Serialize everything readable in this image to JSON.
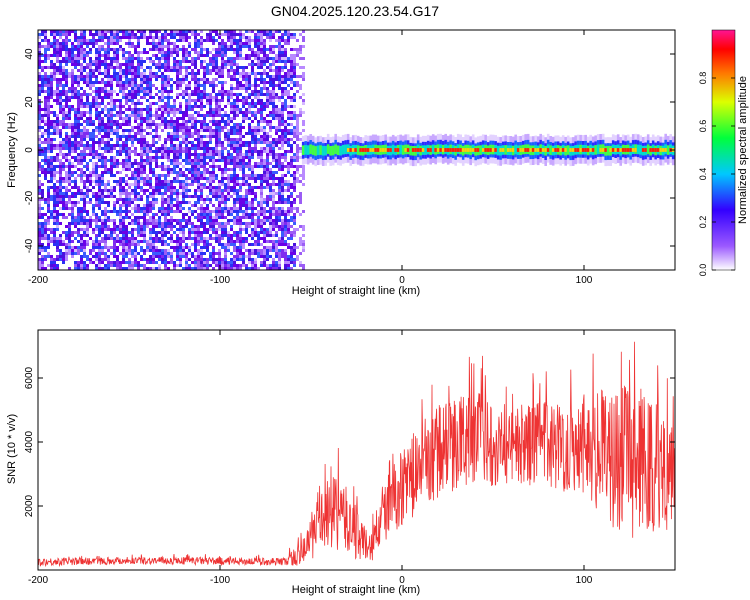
{
  "page_title": "GN04.2025.120.23.54.G17",
  "chart_data": [
    {
      "type": "heatmap",
      "title": "GN04.2025.120.23.54.G17",
      "xlabel": "Height of straight line (km)",
      "ylabel": "Frequency (Hz)",
      "xlim": [
        -200,
        150
      ],
      "ylim": [
        -50,
        50
      ],
      "x_ticks": [
        -200,
        -100,
        0,
        100
      ],
      "y_ticks": [
        -40,
        -20,
        0,
        20,
        40
      ],
      "colorbar": {
        "label": "Normalized spectral amplitude",
        "range": [
          0,
          1
        ],
        "ticks": [
          0.0,
          0.2,
          0.4,
          0.6,
          0.8
        ],
        "colors": [
          "#ffffff",
          "#7f00ff",
          "#0000ff",
          "#00ffff",
          "#00ff00",
          "#ffff00",
          "#ff0000",
          "#ff0080"
        ]
      },
      "regions": [
        {
          "x_range": [
            -200,
            -55
          ],
          "y_range": [
            -50,
            50
          ],
          "amplitude": 0.15,
          "description_color": "#8a2be2"
        },
        {
          "x_range": [
            -55,
            150
          ],
          "y_range": [
            -3,
            3
          ],
          "amplitude": 0.85,
          "description_color": "#ff0000"
        }
      ]
    },
    {
      "type": "line",
      "xlabel": "Height of straight line (km)",
      "ylabel": "SNR (10 * v/v)",
      "xlim": [
        -200,
        150
      ],
      "ylim": [
        0,
        7500
      ],
      "x_ticks": [
        -200,
        -100,
        0,
        100
      ],
      "y_ticks": [
        2000,
        4000,
        6000
      ],
      "color": "#ee3333",
      "envelope": {
        "x": [
          -200,
          -150,
          -100,
          -65,
          -55,
          -45,
          -35,
          -25,
          -18,
          -10,
          0,
          10,
          20,
          30,
          40,
          50,
          60,
          70,
          80,
          90,
          100,
          110,
          120,
          130,
          140,
          150
        ],
        "center": [
          250,
          300,
          280,
          260,
          500,
          1600,
          1800,
          1200,
          600,
          1800,
          2600,
          3200,
          3700,
          4000,
          4200,
          4000,
          3900,
          3900,
          4000,
          3800,
          4100,
          3600,
          3500,
          3300,
          3200,
          3500
        ],
        "spread": [
          120,
          120,
          120,
          120,
          400,
          1100,
          1200,
          900,
          500,
          1000,
          1200,
          1400,
          1500,
          1500,
          1500,
          1400,
          1300,
          1300,
          1400,
          1400,
          1700,
          2100,
          2300,
          2400,
          2300,
          2000
        ]
      }
    }
  ]
}
